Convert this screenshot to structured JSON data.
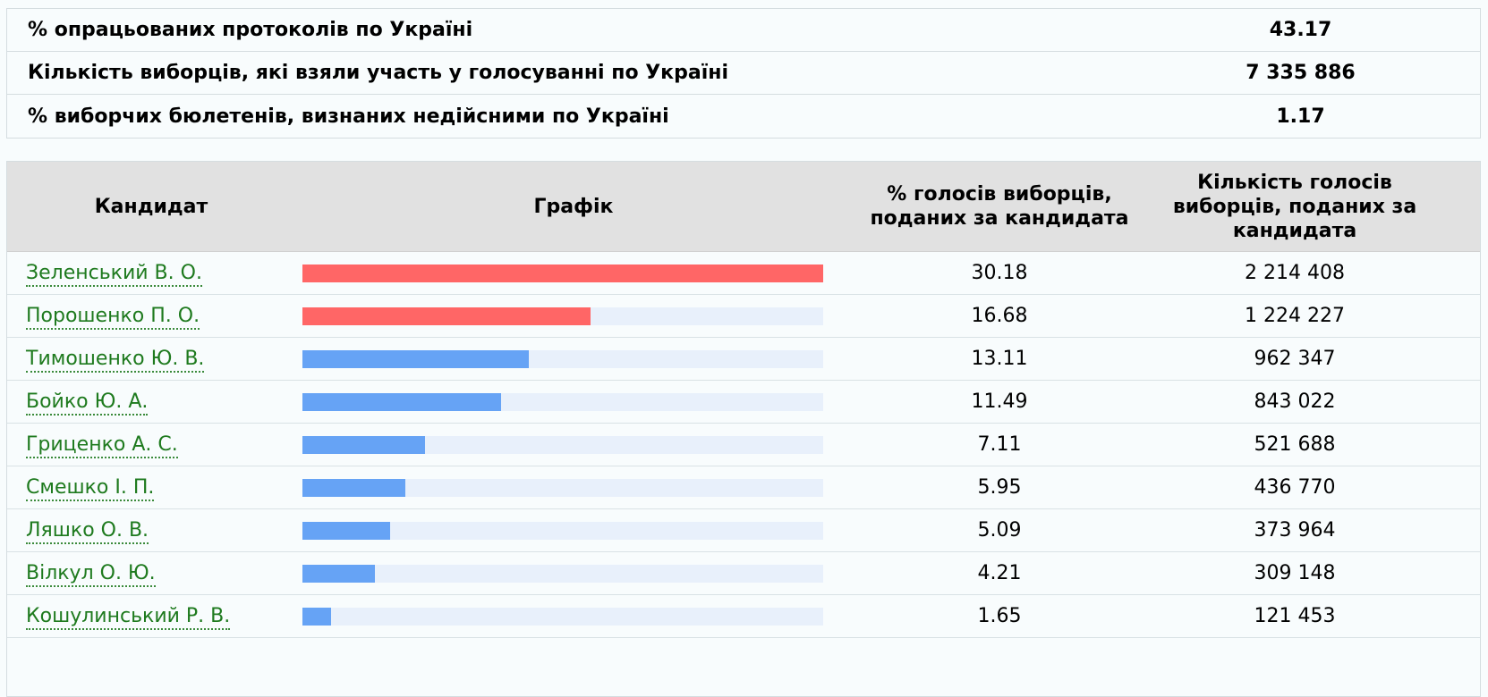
{
  "summary": {
    "rows": [
      {
        "label": "% опрацьованих протоколів по Україні",
        "value": "43.17"
      },
      {
        "label": "Кількість виборців, які взяли участь у голосуванні по Україні",
        "value": "7 335 886"
      },
      {
        "label": "% виборчих бюлетенів, визнаних недійсними по Україні",
        "value": "1.17"
      }
    ]
  },
  "table": {
    "headers": {
      "candidate": "Кандидат",
      "chart": "Графік",
      "pct": "% голосів виборців, поданих за кандидата",
      "count": "Кількість голосів виборців, поданих за кандидата"
    }
  },
  "colors": {
    "top_bar": "#ff6666",
    "other_bar": "#66a3f5",
    "track": "#e8f0fb",
    "candidate_link": "#1e7a1e"
  },
  "chart_data": {
    "type": "bar",
    "categories": [
      "Зеленський В. О.",
      "Порошенко П. О.",
      "Тимошенко Ю. В.",
      "Бойко Ю. А.",
      "Гриценко А. С.",
      "Смешко І. П.",
      "Ляшко О. В.",
      "Вілкул О. Ю.",
      "Кошулинський Р. В."
    ],
    "values": [
      30.18,
      16.68,
      13.11,
      11.49,
      7.11,
      5.95,
      5.09,
      4.21,
      1.65
    ],
    "counts": [
      "2 214 408",
      "1 224 227",
      "962 347",
      "843 022",
      "521 688",
      "436 770",
      "373 964",
      "309 148",
      "121 453"
    ],
    "highlight_top": 2,
    "xlim": [
      0,
      30.18
    ]
  }
}
